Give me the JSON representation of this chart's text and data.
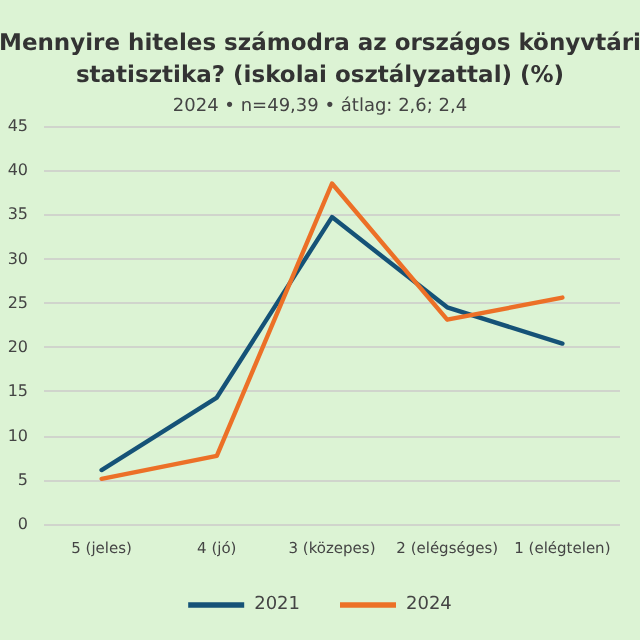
{
  "chart_data": {
    "type": "line",
    "title": "Mennyire hiteles számodra az országos könyvtári\nstatisztika? (iskolai osztályzattal) (%)",
    "subtitle": "2024 • n=49,39 • átlag: 2,6; 2,4",
    "categories": [
      "5 (jeles)",
      "4 (jó)",
      "3 (közepes)",
      "2 (elégséges)",
      "1 (elégtelen)"
    ],
    "series": [
      {
        "name": "2021",
        "color": "#155277",
        "values": [
          6.1,
          14.3,
          34.7,
          24.5,
          20.4
        ]
      },
      {
        "name": "2024",
        "color": "#ec7027",
        "values": [
          5.1,
          7.7,
          38.5,
          23.1,
          25.6
        ]
      }
    ],
    "ylim": [
      0,
      45
    ],
    "yticks": [
      0,
      5,
      10,
      15,
      20,
      25,
      30,
      35,
      40,
      45
    ],
    "grid": "y",
    "legend": "bottom",
    "marker": "none",
    "line_style": "solid"
  }
}
